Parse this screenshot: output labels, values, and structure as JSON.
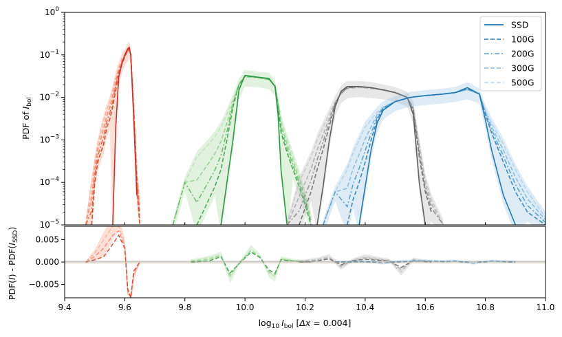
{
  "chart_data": [
    {
      "type": "line",
      "panel": "top",
      "ylabel_main": "PDF of ",
      "ylabel_italic": "I",
      "ylabel_sub": "bol",
      "yscale": "log",
      "ylim": [
        1e-05,
        1
      ],
      "xlim": [
        9.4,
        11.0
      ],
      "ytick_labels": [
        {
          "base": "10",
          "exp": "0"
        },
        {
          "base": "10",
          "exp": "−1"
        },
        {
          "base": "10",
          "exp": "−2"
        },
        {
          "base": "10",
          "exp": "−3"
        },
        {
          "base": "10",
          "exp": "−4"
        },
        {
          "base": "10",
          "exp": "−5"
        }
      ],
      "legend": {
        "placement": "top-right",
        "entries": [
          {
            "label": "SSD",
            "dash": "solid",
            "color": "#1f77b4"
          },
          {
            "label": "100G",
            "dash": "dashed",
            "color": "#3a87c2"
          },
          {
            "label": "200G",
            "dash": "dashdot",
            "color": "#6aa9d6"
          },
          {
            "label": "300G",
            "dash": "dashed",
            "color": "#92c3e4"
          },
          {
            "label": "500G",
            "dash": "dashed",
            "color": "#b8d9ef"
          }
        ]
      },
      "groups": [
        {
          "name": "red",
          "palette": [
            "#d62a24",
            "#e3492f",
            "#ee6d4c",
            "#f59475",
            "#f9b79e"
          ],
          "x": [
            9.47,
            9.49,
            9.5,
            9.51,
            9.52,
            9.53,
            9.54,
            9.55,
            9.56,
            9.57,
            9.58,
            9.59,
            9.6,
            9.61,
            9.615,
            9.62,
            9.63,
            9.64,
            9.65
          ],
          "ssd": [
            null,
            null,
            null,
            null,
            null,
            null,
            null,
            null,
            1e-05,
            0.002,
            0.03,
            0.06,
            0.1,
            0.14,
            0.15,
            0.1,
            0.003,
            5e-05,
            null
          ],
          "g100": [
            null,
            1e-05,
            0.0001,
            0.0003,
            0.0005,
            0.0008,
            0.002,
            0.003,
            0.006,
            0.015,
            0.035,
            0.06,
            0.09,
            0.13,
            0.14,
            0.1,
            0.004,
            8e-05,
            1e-05
          ],
          "g500": [
            1e-05,
            0.0001,
            0.0003,
            0.0008,
            0.0015,
            0.003,
            0.005,
            0.008,
            0.015,
            0.03,
            0.05,
            0.08,
            0.1,
            0.12,
            0.13,
            0.1,
            0.006,
            0.0002,
            3e-05
          ]
        },
        {
          "name": "green",
          "palette": [
            "#2a9845",
            "#47ab57",
            "#6dc06e",
            "#97d490",
            "#bfe5b6"
          ],
          "x": [
            9.76,
            9.8,
            9.84,
            9.88,
            9.9,
            9.92,
            9.94,
            9.96,
            9.98,
            10.0,
            10.04,
            10.08,
            10.1,
            10.11,
            10.12,
            10.14,
            10.16,
            10.18,
            10.2,
            10.22
          ],
          "ssd": [
            null,
            null,
            null,
            null,
            null,
            1e-05,
            0.0001,
            0.001,
            0.015,
            0.033,
            0.03,
            0.028,
            0.018,
            0.004,
            0.0002,
            1e-05,
            null,
            null,
            null,
            null
          ],
          "g100": [
            null,
            null,
            1e-05,
            4e-05,
            8e-05,
            0.0002,
            0.001,
            0.006,
            0.02,
            0.032,
            0.03,
            0.027,
            0.018,
            0.006,
            0.0015,
            0.0005,
            0.0002,
            8e-05,
            3e-05,
            1e-05
          ],
          "g500": [
            1e-05,
            0.0001,
            0.0004,
            0.0008,
            0.0012,
            0.002,
            0.004,
            0.009,
            0.02,
            0.03,
            0.029,
            0.026,
            0.019,
            0.008,
            0.003,
            0.001,
            0.0004,
            0.00015,
            5e-05,
            1.5e-05
          ]
        },
        {
          "name": "gray",
          "palette": [
            "#606060",
            "#787878",
            "#939393",
            "#b0b0b0",
            "#cbcbcb"
          ],
          "x": [
            10.14,
            10.18,
            10.22,
            10.24,
            10.26,
            10.28,
            10.3,
            10.32,
            10.34,
            10.38,
            10.42,
            10.46,
            10.5,
            10.54,
            10.56,
            10.58,
            10.6,
            10.62,
            10.66
          ],
          "ssd": [
            null,
            null,
            null,
            1e-05,
            8e-05,
            0.0009,
            0.006,
            0.014,
            0.018,
            0.018,
            0.017,
            0.015,
            0.013,
            0.01,
            0.004,
            0.0001,
            1e-05,
            null,
            null
          ],
          "g100": [
            null,
            1e-05,
            6e-05,
            0.0002,
            0.0006,
            0.002,
            0.007,
            0.013,
            0.017,
            0.018,
            0.017,
            0.015,
            0.013,
            0.01,
            0.005,
            0.0004,
            6e-05,
            2e-05,
            null
          ],
          "g500": [
            1e-05,
            0.0001,
            0.0004,
            0.001,
            0.002,
            0.004,
            0.008,
            0.012,
            0.016,
            0.017,
            0.016,
            0.015,
            0.013,
            0.01,
            0.006,
            0.0008,
            0.00012,
            4e-05,
            1e-05
          ]
        },
        {
          "name": "blue",
          "palette": [
            "#2079b5",
            "#3a8ac3",
            "#5ea2d2",
            "#8cbde0",
            "#b4d4ec"
          ],
          "x": [
            10.26,
            10.3,
            10.34,
            10.36,
            10.38,
            10.4,
            10.42,
            10.44,
            10.46,
            10.5,
            10.55,
            10.6,
            10.66,
            10.7,
            10.74,
            10.78,
            10.8,
            10.82,
            10.86,
            10.9,
            10.94,
            11.0
          ],
          "ssd": [
            null,
            null,
            null,
            null,
            1e-05,
            8e-05,
            0.0006,
            0.0025,
            0.005,
            0.008,
            0.01,
            0.011,
            0.012,
            0.013,
            0.017,
            0.012,
            0.003,
            0.0006,
            5e-05,
            1e-05,
            null,
            null
          ],
          "g100": [
            null,
            null,
            1e-05,
            4e-05,
            0.0001,
            0.0003,
            0.001,
            0.003,
            0.0055,
            0.008,
            0.01,
            0.011,
            0.012,
            0.013,
            0.016,
            0.012,
            0.004,
            0.0015,
            0.0003,
            6e-05,
            2e-05,
            1e-05
          ],
          "g500": [
            1e-05,
            6e-05,
            0.0002,
            0.0005,
            0.001,
            0.002,
            0.003,
            0.0045,
            0.006,
            0.008,
            0.01,
            0.011,
            0.012,
            0.013,
            0.015,
            0.012,
            0.005,
            0.0025,
            0.0008,
            0.0002,
            6e-05,
            1.5e-05
          ]
        }
      ]
    },
    {
      "type": "line",
      "panel": "bottom",
      "ylabel": "PDF(I) - PDF(I_SSD)",
      "ylabel_parts": {
        "a": "PDF(",
        "b": "I",
        "c": ") - PDF(",
        "d": "I",
        "sub": "SSD",
        "e": ")"
      },
      "ylim": [
        -0.008,
        0.008
      ],
      "xlim": [
        9.4,
        11.0
      ],
      "xlabel": "log10 I_bol [Δx = 0.004]",
      "xlabel_parts": {
        "a": "log",
        "sub1": "10",
        "b": "I",
        "sub2": "bol",
        "c": " [",
        "d": "Δx",
        "e": " = 0.004]"
      },
      "xticks": [
        9.4,
        9.6,
        9.8,
        10.0,
        10.2,
        10.4,
        10.6,
        10.8,
        11.0
      ],
      "xtick_labels": [
        "9.4",
        "9.6",
        "9.8",
        "10.0",
        "10.2",
        "10.4",
        "10.6",
        "10.8",
        "11.0"
      ],
      "yticks": [
        0.005,
        0.0,
        -0.005
      ],
      "ytick_labels": [
        "0.005",
        "0.000",
        "−0.005"
      ],
      "residuals": [
        {
          "group": "red",
          "x": [
            9.47,
            9.5,
            9.53,
            9.56,
            9.58,
            9.6,
            9.61,
            9.62,
            9.63,
            9.65
          ],
          "g100": [
            0,
            0.0005,
            0.0012,
            0.004,
            0.006,
            0.003,
            -0.006,
            -0.008,
            -0.002,
            0
          ],
          "g500": [
            0,
            0.002,
            0.005,
            0.008,
            0.008,
            0.004,
            -0.007,
            -0.008,
            -0.003,
            0
          ]
        },
        {
          "group": "green",
          "x": [
            9.82,
            9.88,
            9.92,
            9.95,
            9.98,
            10.02,
            10.05,
            10.08,
            10.1,
            10.12,
            10.16,
            10.22
          ],
          "g100": [
            0,
            0.0002,
            0.0012,
            -0.0025,
            -0.0004,
            0.0022,
            0.001,
            -0.0018,
            -0.0025,
            0.0005,
            0.0002,
            0
          ],
          "g500": [
            0.0003,
            0.0009,
            0.0016,
            -0.0035,
            -0.0002,
            0.0028,
            0.0012,
            -0.0025,
            -0.0032,
            0.0008,
            0.0004,
            0
          ]
        },
        {
          "group": "gray",
          "x": [
            10.18,
            10.24,
            10.28,
            10.32,
            10.36,
            10.4,
            10.44,
            10.48,
            10.52,
            10.56,
            10.62
          ],
          "g100": [
            0,
            0.0002,
            0.0007,
            -0.0006,
            0.0003,
            0.0006,
            0.0004,
            0.0002,
            -0.0012,
            0.0003,
            0
          ],
          "g500": [
            0.0002,
            0.0006,
            0.0012,
            -0.0012,
            0.0005,
            0.0012,
            0.0008,
            0.0004,
            -0.0022,
            0.0006,
            0.0001
          ]
        },
        {
          "group": "blue",
          "x": [
            10.3,
            10.4,
            10.46,
            10.52,
            10.6,
            10.66,
            10.7,
            10.76,
            10.82,
            10.9
          ],
          "g100": [
            0,
            0.0001,
            -0.0002,
            0.0001,
            0.0002,
            0.0001,
            0.0002,
            -0.0002,
            0.0002,
            0
          ],
          "g500": [
            0,
            0.0002,
            -0.0003,
            0.0002,
            0.0003,
            0.0002,
            0.0003,
            -0.0003,
            0.0003,
            0.0001
          ]
        }
      ]
    }
  ]
}
